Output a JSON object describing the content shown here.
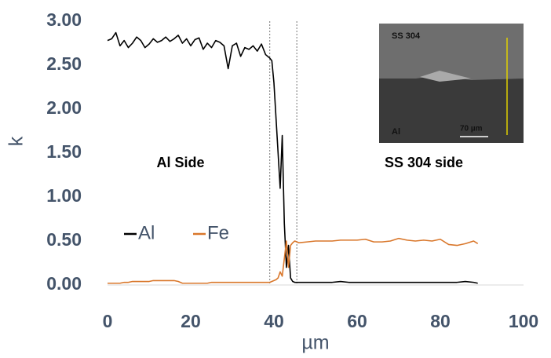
{
  "chart_data": {
    "type": "line",
    "x_label": "µm",
    "y_label": "k",
    "xlim": [
      0,
      100
    ],
    "ylim": [
      0,
      3
    ],
    "xticks": [
      0,
      20,
      40,
      60,
      80,
      100
    ],
    "yticks": [
      {
        "value": 0,
        "label": "0.00"
      },
      {
        "value": 0.5,
        "label": "0.50"
      },
      {
        "value": 1,
        "label": "1.00"
      },
      {
        "value": 1.5,
        "label": "1.50"
      },
      {
        "value": 2,
        "label": "2.00"
      },
      {
        "value": 2.5,
        "label": "2.50"
      },
      {
        "value": 3,
        "label": "3.00"
      }
    ],
    "legend": "center left",
    "reference_lines": [
      39,
      45.5
    ],
    "annotations": [
      "Al Side",
      "SS 304 side"
    ],
    "inset": {
      "top_label": "SS 304",
      "bottom_label": "Al",
      "scale_label": "70 µm"
    },
    "x": [
      0,
      1,
      2,
      3,
      4,
      5,
      6,
      7,
      8,
      9,
      10,
      11,
      12,
      13,
      14,
      15,
      16,
      17,
      18,
      19,
      20,
      21,
      22,
      23,
      24,
      25,
      26,
      27,
      28,
      29,
      30,
      31,
      32,
      33,
      34,
      35,
      36,
      37,
      38,
      39,
      39.5,
      40,
      40.5,
      41,
      41.5,
      42,
      42.5,
      43,
      43.5,
      44,
      44.5,
      45,
      46,
      48,
      50,
      52,
      54,
      56,
      58,
      60,
      62,
      64,
      66,
      68,
      70,
      72,
      74,
      76,
      78,
      80,
      82,
      84,
      86,
      88,
      89
    ],
    "series": [
      {
        "name": "Al",
        "color": "#000000",
        "values": [
          2.78,
          2.8,
          2.87,
          2.72,
          2.78,
          2.7,
          2.75,
          2.82,
          2.78,
          2.7,
          2.74,
          2.8,
          2.76,
          2.78,
          2.82,
          2.77,
          2.8,
          2.84,
          2.75,
          2.8,
          2.72,
          2.79,
          2.81,
          2.68,
          2.75,
          2.7,
          2.78,
          2.76,
          2.72,
          2.46,
          2.72,
          2.75,
          2.6,
          2.7,
          2.68,
          2.72,
          2.66,
          2.74,
          2.62,
          2.58,
          2.55,
          2.3,
          1.9,
          1.5,
          1.1,
          1.7,
          0.7,
          0.2,
          0.45,
          0.08,
          0.04,
          0.03,
          0.03,
          0.03,
          0.03,
          0.03,
          0.03,
          0.04,
          0.03,
          0.03,
          0.03,
          0.03,
          0.03,
          0.03,
          0.03,
          0.03,
          0.03,
          0.03,
          0.03,
          0.03,
          0.03,
          0.03,
          0.04,
          0.03,
          0.02
        ]
      },
      {
        "name": "Fe",
        "color": "#d9772b",
        "values": [
          0.02,
          0.02,
          0.02,
          0.02,
          0.03,
          0.03,
          0.04,
          0.04,
          0.04,
          0.04,
          0.04,
          0.05,
          0.05,
          0.05,
          0.05,
          0.05,
          0.05,
          0.04,
          0.02,
          0.02,
          0.02,
          0.02,
          0.02,
          0.02,
          0.02,
          0.03,
          0.03,
          0.03,
          0.03,
          0.03,
          0.03,
          0.03,
          0.03,
          0.03,
          0.03,
          0.03,
          0.03,
          0.03,
          0.03,
          0.03,
          0.04,
          0.05,
          0.06,
          0.08,
          0.15,
          0.1,
          0.3,
          0.5,
          0.2,
          0.45,
          0.48,
          0.5,
          0.48,
          0.49,
          0.5,
          0.5,
          0.5,
          0.51,
          0.51,
          0.51,
          0.52,
          0.49,
          0.49,
          0.5,
          0.53,
          0.51,
          0.5,
          0.51,
          0.5,
          0.52,
          0.46,
          0.45,
          0.47,
          0.5,
          0.47
        ]
      }
    ]
  }
}
